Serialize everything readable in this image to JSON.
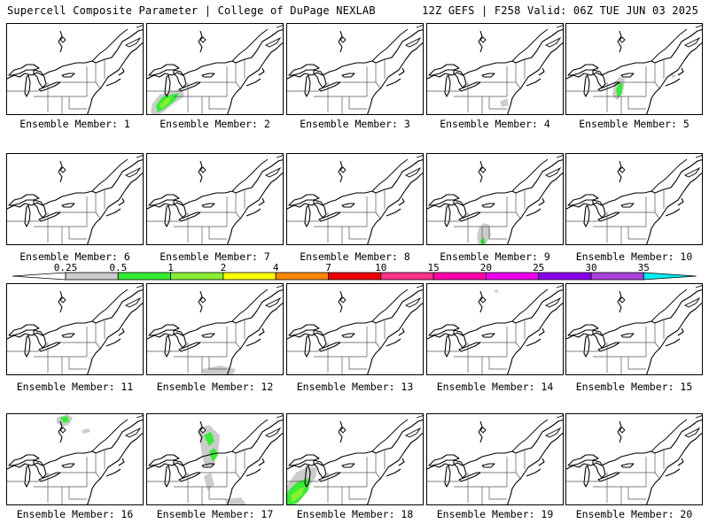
{
  "header": {
    "left": "Supercell Composite Parameter | College of DuPage NEXLAB",
    "right": "12Z GEFS | F258 Valid: 06Z TUE JUN 03 2025"
  },
  "colorbar": {
    "levels": [
      "0.25",
      "0.5",
      "1",
      "2",
      "4",
      "7",
      "10",
      "15",
      "20",
      "25",
      "30",
      "35"
    ],
    "colors": [
      "#cccccc",
      "#33ee33",
      "#88ee33",
      "#ffff00",
      "#ff8800",
      "#ee0000",
      "#ff3388",
      "#ff00aa",
      "#ee00ee",
      "#8800ee",
      "#aa44dd",
      "#00eeee"
    ]
  },
  "panels": [
    {
      "label": "Ensemble Member: 1",
      "blobs": []
    },
    {
      "label": "Ensemble Member: 2",
      "blobs": [
        "m2"
      ]
    },
    {
      "label": "Ensemble Member: 3",
      "blobs": []
    },
    {
      "label": "Ensemble Member: 4",
      "blobs": [
        "m4"
      ]
    },
    {
      "label": "Ensemble Member: 5",
      "blobs": [
        "m5"
      ]
    },
    {
      "label": "Ensemble Member: 6",
      "blobs": []
    },
    {
      "label": "Ensemble Member: 7",
      "blobs": []
    },
    {
      "label": "Ensemble Member: 8",
      "blobs": []
    },
    {
      "label": "Ensemble Member: 9",
      "blobs": [
        "m9"
      ]
    },
    {
      "label": "Ensemble Member: 10",
      "blobs": []
    },
    {
      "label": "Ensemble Member: 11",
      "blobs": []
    },
    {
      "label": "Ensemble Member: 12",
      "blobs": [
        "m12"
      ]
    },
    {
      "label": "Ensemble Member: 13",
      "blobs": []
    },
    {
      "label": "Ensemble Member: 14",
      "blobs": [
        "m14"
      ]
    },
    {
      "label": "Ensemble Member: 15",
      "blobs": []
    },
    {
      "label": "Ensemble Member: 16",
      "blobs": [
        "m16"
      ]
    },
    {
      "label": "Ensemble Member: 17",
      "blobs": [
        "m17"
      ]
    },
    {
      "label": "Ensemble Member: 18",
      "blobs": [
        "m18"
      ]
    },
    {
      "label": "Ensemble Member: 19",
      "blobs": []
    },
    {
      "label": "Ensemble Member: 20",
      "blobs": []
    }
  ]
}
